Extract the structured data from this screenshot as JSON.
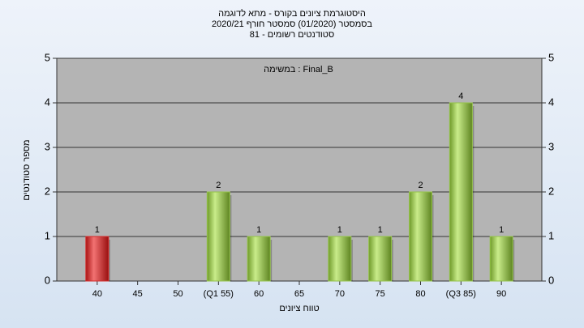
{
  "chart_data": {
    "type": "bar",
    "title": "היסטוגרמת ציונים בקורס - מתא לדוגמה",
    "subtitle": "בסמסטר  (01/2020)  סמסטר חורף  2020/21",
    "subtitle2": "סטודנטים רשומים - 81",
    "annotation": "במשימה : Final_B",
    "x_label": "טווח ציונים",
    "y_label": "מספר סטודנטים",
    "categories": [
      "40",
      "45",
      "50",
      "(Q1 55)",
      "60",
      "65",
      "70",
      "75",
      "80",
      "(Q3 85)",
      "90"
    ],
    "values": [
      1,
      0,
      0,
      2,
      1,
      0,
      1,
      1,
      2,
      4,
      1
    ],
    "colors": [
      "#d42a2a",
      "#94c447",
      "#94c447",
      "#94c447",
      "#94c447",
      "#94c447",
      "#94c447",
      "#94c447",
      "#94c447",
      "#94c447",
      "#94c447"
    ],
    "ylim": [
      0,
      5
    ],
    "yticks": [
      0,
      1,
      2,
      3,
      4,
      5
    ],
    "y2lim": [
      0,
      5
    ],
    "y2ticks": [
      0,
      1,
      2,
      3,
      4,
      5
    ],
    "grid": true
  }
}
